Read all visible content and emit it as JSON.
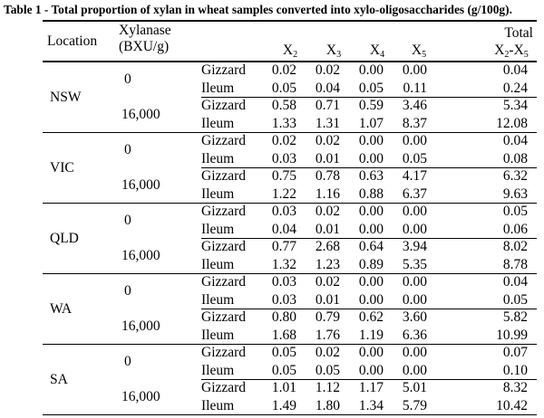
{
  "caption": "Table 1 - Total proportion of xylan in wheat samples converted into xylo-oligosaccharides (g/100g).",
  "headers": {
    "location": "Location",
    "xylanase_line1": "Xylanase",
    "xylanase_line2": "(BXU/g)",
    "x2": "X",
    "x2_sub": "2",
    "x3": "X",
    "x3_sub": "3",
    "x4": "X",
    "x4_sub": "4",
    "x5": "X",
    "x5_sub": "5",
    "total_line1": "Total",
    "total_line2_a": "X",
    "total_line2_a_sub": "2",
    "total_line2_b": "-X",
    "total_line2_b_sub": "5"
  },
  "groups": [
    {
      "location": "NSW",
      "dose_low": "0",
      "dose_high": "16,000",
      "rows": [
        {
          "site": "Gizzard",
          "x2": "0.02",
          "x3": "0.02",
          "x4": "0.00",
          "x5": "0.00",
          "total": "0.04"
        },
        {
          "site": "Ileum",
          "x2": "0.05",
          "x3": "0.04",
          "x4": "0.05",
          "x5": "0.11",
          "total": "0.24"
        },
        {
          "site": "Gizzard",
          "x2": "0.58",
          "x3": "0.71",
          "x4": "0.59",
          "x5": "3.46",
          "total": "5.34"
        },
        {
          "site": "Ileum",
          "x2": "1.33",
          "x3": "1.31",
          "x4": "1.07",
          "x5": "8.37",
          "total": "12.08"
        }
      ]
    },
    {
      "location": "VIC",
      "dose_low": "0",
      "dose_high": "16,000",
      "rows": [
        {
          "site": "Gizzard",
          "x2": "0.02",
          "x3": "0.02",
          "x4": "0.00",
          "x5": "0.00",
          "total": "0.04"
        },
        {
          "site": "Ileum",
          "x2": "0.03",
          "x3": "0.01",
          "x4": "0.00",
          "x5": "0.05",
          "total": "0.08"
        },
        {
          "site": "Gizzard",
          "x2": "0.75",
          "x3": "0.78",
          "x4": "0.63",
          "x5": "4.17",
          "total": "6.32"
        },
        {
          "site": "Ileum",
          "x2": "1.22",
          "x3": "1.16",
          "x4": "0.88",
          "x5": "6.37",
          "total": "9.63"
        }
      ]
    },
    {
      "location": "QLD",
      "dose_low": "0",
      "dose_high": "16,000",
      "rows": [
        {
          "site": "Gizzard",
          "x2": "0.03",
          "x3": "0.02",
          "x4": "0.00",
          "x5": "0.00",
          "total": "0.05"
        },
        {
          "site": "Ileum",
          "x2": "0.04",
          "x3": "0.01",
          "x4": "0.00",
          "x5": "0.00",
          "total": "0.06"
        },
        {
          "site": "Gizzard",
          "x2": "0.77",
          "x3": "2.68",
          "x4": "0.64",
          "x5": "3.94",
          "total": "8.02"
        },
        {
          "site": "Ileum",
          "x2": "1.32",
          "x3": "1.23",
          "x4": "0.89",
          "x5": "5.35",
          "total": "8.78"
        }
      ]
    },
    {
      "location": "WA",
      "dose_low": "0",
      "dose_high": "16,000",
      "rows": [
        {
          "site": "Gizzard",
          "x2": "0.03",
          "x3": "0.02",
          "x4": "0.00",
          "x5": "0.00",
          "total": "0.04"
        },
        {
          "site": "Ileum",
          "x2": "0.03",
          "x3": "0.01",
          "x4": "0.00",
          "x5": "0.00",
          "total": "0.05"
        },
        {
          "site": "Gizzard",
          "x2": "0.80",
          "x3": "0.79",
          "x4": "0.62",
          "x5": "3.60",
          "total": "5.82"
        },
        {
          "site": "Ileum",
          "x2": "1.68",
          "x3": "1.76",
          "x4": "1.19",
          "x5": "6.36",
          "total": "10.99"
        }
      ]
    },
    {
      "location": "SA",
      "dose_low": "0",
      "dose_high": "16,000",
      "rows": [
        {
          "site": "Gizzard",
          "x2": "0.05",
          "x3": "0.02",
          "x4": "0.00",
          "x5": "0.00",
          "total": "0.07"
        },
        {
          "site": "Ileum",
          "x2": "0.05",
          "x3": "0.05",
          "x4": "0.00",
          "x5": "0.00",
          "total": "0.10"
        },
        {
          "site": "Gizzard",
          "x2": "1.01",
          "x3": "1.12",
          "x4": "1.17",
          "x5": "5.01",
          "total": "8.32"
        },
        {
          "site": "Ileum",
          "x2": "1.49",
          "x3": "1.80",
          "x4": "1.34",
          "x5": "5.79",
          "total": "10.42"
        }
      ]
    }
  ]
}
